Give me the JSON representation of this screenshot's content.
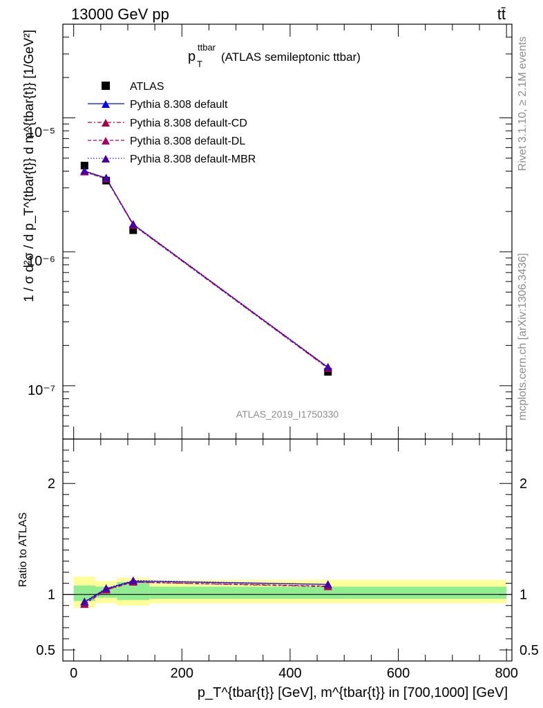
{
  "header": {
    "left": "13000 GeV pp",
    "right": "tt̄"
  },
  "side_text": {
    "rivet": "Rivet 3.1.10, ≥ 2.1M events",
    "mcplots": "mcplots.cern.ch [arXiv:1306.3436]"
  },
  "colors": {
    "atlas": "#000000",
    "default": "#0000ff",
    "cd": "#aa0044",
    "dl": "#aa0066",
    "mbr": "#4400aa",
    "band_inner": "#90ee90",
    "band_outer": "#ffff99"
  },
  "chart_data": [
    {
      "type": "scatter",
      "title_main": "p",
      "title_sub": "T",
      "title_sup": "ttbar",
      "title_rest": " (ATLAS semileptonic ttbar)",
      "watermark": "ATLAS_2019_I1750330",
      "ylabel": "1 / σ d²σ / d p_T^{tbar{t}} d m^{tbar{t}} [1/GeV²]",
      "ylog": true,
      "ylim": [
        4e-08,
        5e-05
      ],
      "xlim": [
        -20,
        810
      ],
      "ytick_labels": [
        "10⁻⁵",
        "10⁻⁶",
        "10⁻⁷"
      ],
      "legend_position": "top-left",
      "x": [
        20,
        60,
        110,
        470
      ],
      "series": [
        {
          "name": "ATLAS",
          "marker": "square",
          "values": [
            4.4e-06,
            3.4e-06,
            1.45e-06,
            1.27e-07
          ]
        },
        {
          "name": "Pythia 8.308 default",
          "marker": "triangle",
          "line": "solid",
          "values": [
            4e-06,
            3.55e-06,
            1.6e-06,
            1.37e-07
          ]
        },
        {
          "name": "Pythia 8.308 default-CD",
          "marker": "triangle",
          "line": "dashdot",
          "values": [
            3.95e-06,
            3.5e-06,
            1.58e-06,
            1.35e-07
          ]
        },
        {
          "name": "Pythia 8.308 default-DL",
          "marker": "triangle",
          "line": "dashed",
          "values": [
            3.96e-06,
            3.52e-06,
            1.59e-06,
            1.36e-07
          ]
        },
        {
          "name": "Pythia 8.308 default-MBR",
          "marker": "triangle",
          "line": "dotted",
          "values": [
            4.02e-06,
            3.56e-06,
            1.61e-06,
            1.38e-07
          ]
        }
      ]
    },
    {
      "type": "line",
      "ylabel": "Ratio to ATLAS",
      "xlabel": "p_T^{tbar{t}} [GeV], m^{tbar{t}} in [700,1000] [GeV]",
      "ylim": [
        0.4,
        2.4
      ],
      "xlim": [
        -20,
        810
      ],
      "yticks": [
        0.5,
        1,
        2
      ],
      "ytick_labels": [
        "0.5",
        "1",
        "2"
      ],
      "xticks": [
        0,
        200,
        400,
        600,
        800
      ],
      "xtick_labels": [
        "0",
        "200",
        "400",
        "600",
        "800"
      ],
      "bands": [
        {
          "xlo": 0,
          "xhi": 40,
          "inner": [
            0.94,
            1.08
          ],
          "outer": [
            0.88,
            1.16
          ]
        },
        {
          "xlo": 40,
          "xhi": 80,
          "inner": [
            0.97,
            1.07
          ],
          "outer": [
            0.92,
            1.12
          ]
        },
        {
          "xlo": 80,
          "xhi": 140,
          "inner": [
            0.95,
            1.11
          ],
          "outer": [
            0.9,
            1.15
          ]
        },
        {
          "xlo": 140,
          "xhi": 800,
          "inner": [
            0.96,
            1.07
          ],
          "outer": [
            0.92,
            1.13
          ]
        }
      ],
      "x": [
        20,
        60,
        110,
        470
      ],
      "series": [
        {
          "name": "Pythia 8.308 default",
          "values": [
            0.93,
            1.05,
            1.12,
            1.09
          ]
        },
        {
          "name": "Pythia 8.308 default-CD",
          "values": [
            0.91,
            1.04,
            1.11,
            1.07
          ]
        },
        {
          "name": "Pythia 8.308 default-DL",
          "values": [
            0.915,
            1.045,
            1.11,
            1.075
          ]
        },
        {
          "name": "Pythia 8.308 default-MBR",
          "values": [
            0.935,
            1.055,
            1.125,
            1.09
          ]
        }
      ]
    }
  ]
}
